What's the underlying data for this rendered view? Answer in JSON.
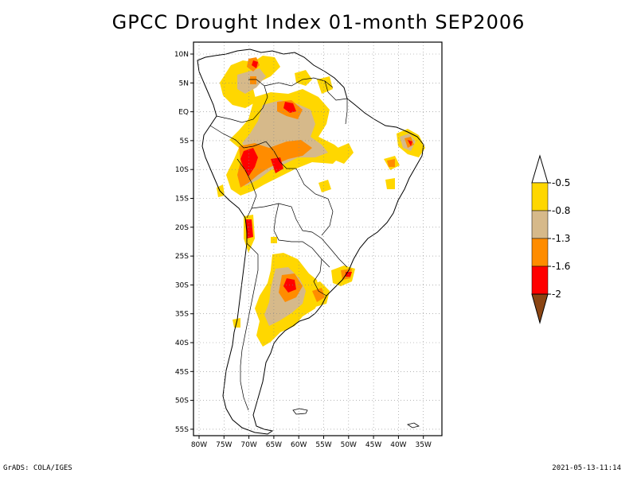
{
  "title": "GPCC Drought Index 01-month SEP2006",
  "footer": {
    "left": "GrADS: COLA/IGES",
    "right": "2021-05-13-11:14"
  },
  "map": {
    "lat_range": [
      -56,
      12
    ],
    "lon_range": [
      -81,
      -31
    ],
    "lat_ticks": [
      "10N",
      "5N",
      "EQ",
      "5S",
      "10S",
      "15S",
      "20S",
      "25S",
      "30S",
      "35S",
      "40S",
      "45S",
      "50S",
      "55S"
    ],
    "lon_ticks": [
      "80W",
      "75W",
      "70W",
      "65W",
      "60W",
      "55W",
      "50W",
      "45W",
      "40W",
      "35W"
    ],
    "grid": "dotted",
    "region": "South America"
  },
  "legend": {
    "placement": "right",
    "labels": [
      "-0.5",
      "-0.8",
      "-1.3",
      "-1.6",
      "-2"
    ],
    "colors": {
      "top_arrow": "#ffffff",
      "band1": "#ffd700",
      "band2": "#d6b98a",
      "band3": "#ff8c00",
      "band4": "#ff0000",
      "bottom_arrow": "#8b4513"
    }
  }
}
